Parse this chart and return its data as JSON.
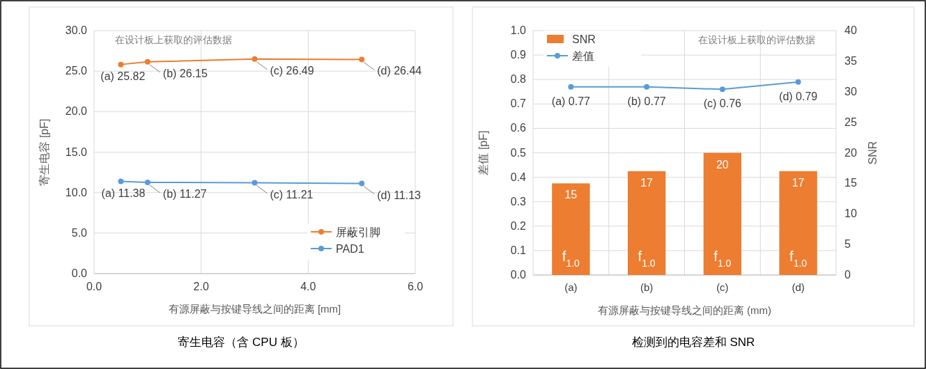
{
  "chart_data": [
    {
      "type": "line",
      "xlabel": "有源屏蔽与按键导线之间的距离 [mm]",
      "ylabel": "寄生电容 [pF]",
      "annotations": [
        "在设计板上获取的评估数据",
        "寄生电容（含 CPU 板）"
      ],
      "x": [
        0.5,
        1,
        3,
        5
      ],
      "series": [
        {
          "name": "屏蔽引脚",
          "color": "#ed7d31",
          "values": [
            25.82,
            26.15,
            26.49,
            26.44
          ],
          "value_labels": [
            "(a) 25.82",
            "(b) 26.15",
            "(c) 26.49",
            "(d) 26.44"
          ]
        },
        {
          "name": "PAD1",
          "color": "#5b9bd5",
          "values": [
            11.38,
            11.27,
            11.21,
            11.13
          ],
          "value_labels": [
            "(a) 11.38",
            "(b) 11.27",
            "(c) 11.21",
            "(d) 11.13"
          ]
        }
      ],
      "xlim": [
        0,
        6
      ],
      "xticks": [
        {
          "value": 0,
          "label": "0.0"
        },
        {
          "value": 2,
          "label": "2.0"
        },
        {
          "value": 4,
          "label": "4.0"
        },
        {
          "value": 6,
          "label": "6.0"
        }
      ],
      "ylim": [
        0,
        30
      ],
      "yticks": [
        {
          "value": 0,
          "label": "0.0"
        },
        {
          "value": 5,
          "label": "5.0"
        },
        {
          "value": 10,
          "label": "10.0"
        },
        {
          "value": 15,
          "label": "15.0"
        },
        {
          "value": 20,
          "label": "20.0"
        },
        {
          "value": 25,
          "label": "25.0"
        },
        {
          "value": 30,
          "label": "30.0"
        }
      ],
      "grid": true,
      "legend": "bottom right",
      "marker": "circle"
    },
    {
      "type": "bar",
      "xlabel": "有源屏蔽与按键导线之间的距离 (mm)",
      "ylabel": "差值 [pF]",
      "y2label": "SNR",
      "annotations": [
        "在设计板上获取的评估数据",
        "检测到的电容差和 SNR",
        "f$_{1.0}$",
        "f$_{1.0}$",
        "f$_{1.0}$",
        "f$_{1.0}$"
      ],
      "categories": [
        "(a)",
        "(b)",
        "(c)",
        "(d)"
      ],
      "series": [
        {
          "name": "SNR",
          "type": "bar",
          "axis": "y2",
          "color": "#ed7d31",
          "values": [
            15,
            17,
            20,
            17
          ],
          "value_labels": [
            "15",
            "17",
            "20",
            "17"
          ]
        },
        {
          "name": "差值",
          "type": "line",
          "color": "#5b9bd5",
          "values": [
            0.77,
            0.77,
            0.76,
            0.79
          ],
          "value_labels": [
            "(a) 0.77",
            "(b) 0.77",
            "(c) 0.76",
            "(d) 0.79"
          ]
        }
      ],
      "ylim": [
        0,
        1
      ],
      "yticks": [
        {
          "value": 0,
          "label": "0.0"
        },
        {
          "value": 0.1,
          "label": "0.1"
        },
        {
          "value": 0.2,
          "label": "0.2"
        },
        {
          "value": 0.3,
          "label": "0.3"
        },
        {
          "value": 0.4,
          "label": "0.4"
        },
        {
          "value": 0.5,
          "label": "0.5"
        },
        {
          "value": 0.6,
          "label": "0.6"
        },
        {
          "value": 0.7,
          "label": "0.7"
        },
        {
          "value": 0.8,
          "label": "0.8"
        },
        {
          "value": 0.9,
          "label": "0.9"
        },
        {
          "value": 1,
          "label": "1.0"
        }
      ],
      "y2lim": [
        0,
        40
      ],
      "y2ticks": [
        0,
        5,
        10,
        15,
        20,
        25,
        30,
        35,
        40
      ],
      "grid": true,
      "legend": "top left",
      "marker": "circle"
    }
  ]
}
